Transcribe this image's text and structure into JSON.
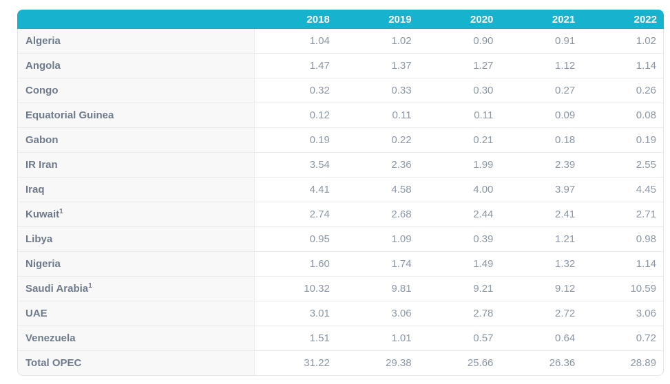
{
  "chart_data": {
    "type": "table",
    "columns": [
      "2018",
      "2019",
      "2020",
      "2021",
      "2022"
    ],
    "rows": [
      {
        "label": "Algeria",
        "sup": "",
        "values": [
          "1.04",
          "1.02",
          "0.90",
          "0.91",
          "1.02"
        ]
      },
      {
        "label": "Angola",
        "sup": "",
        "values": [
          "1.47",
          "1.37",
          "1.27",
          "1.12",
          "1.14"
        ]
      },
      {
        "label": "Congo",
        "sup": "",
        "values": [
          "0.32",
          "0.33",
          "0.30",
          "0.27",
          "0.26"
        ]
      },
      {
        "label": "Equatorial Guinea",
        "sup": "",
        "values": [
          "0.12",
          "0.11",
          "0.11",
          "0.09",
          "0.08"
        ]
      },
      {
        "label": "Gabon",
        "sup": "",
        "values": [
          "0.19",
          "0.22",
          "0.21",
          "0.18",
          "0.19"
        ]
      },
      {
        "label": "IR Iran",
        "sup": "",
        "values": [
          "3.54",
          "2.36",
          "1.99",
          "2.39",
          "2.55"
        ]
      },
      {
        "label": "Iraq",
        "sup": "",
        "values": [
          "4.41",
          "4.58",
          "4.00",
          "3.97",
          "4.45"
        ]
      },
      {
        "label": "Kuwait",
        "sup": "1",
        "values": [
          "2.74",
          "2.68",
          "2.44",
          "2.41",
          "2.71"
        ]
      },
      {
        "label": "Libya",
        "sup": "",
        "values": [
          "0.95",
          "1.09",
          "0.39",
          "1.21",
          "0.98"
        ]
      },
      {
        "label": "Nigeria",
        "sup": "",
        "values": [
          "1.60",
          "1.74",
          "1.49",
          "1.32",
          "1.14"
        ]
      },
      {
        "label": "Saudi Arabia",
        "sup": "1",
        "values": [
          "10.32",
          "9.81",
          "9.21",
          "9.12",
          "10.59"
        ]
      },
      {
        "label": "UAE",
        "sup": "",
        "values": [
          "3.01",
          "3.06",
          "2.78",
          "2.72",
          "3.06"
        ]
      },
      {
        "label": "Venezuela",
        "sup": "",
        "values": [
          "1.51",
          "1.01",
          "0.57",
          "0.64",
          "0.72"
        ]
      },
      {
        "label": "Total OPEC",
        "sup": "",
        "values": [
          "31.22",
          "29.38",
          "25.66",
          "26.36",
          "28.89"
        ]
      }
    ]
  },
  "colors": {
    "header_bg": "#16b2ce",
    "header_text": "#ffffff",
    "label_bg": "#f8f8f8",
    "label_text": "#6f7b8b",
    "value_text": "#8c97a6",
    "row_border": "#eaebec",
    "col_border": "#eceded",
    "outer_border": "#e3e5e7"
  }
}
